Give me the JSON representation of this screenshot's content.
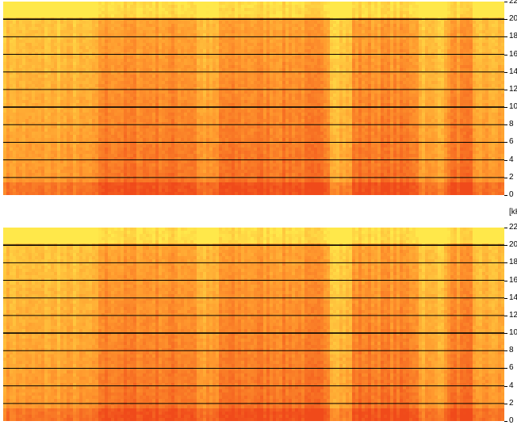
{
  "spectrogram": {
    "panels": [
      {
        "name": "top",
        "gridlines_khz": [
          2,
          4,
          6,
          8,
          10,
          12,
          14,
          16,
          18,
          20
        ]
      },
      {
        "name": "bottom",
        "gridlines_khz": [
          2,
          4,
          6,
          8,
          10,
          12,
          14,
          16,
          18,
          20
        ]
      }
    ],
    "axis": {
      "min": 0,
      "max": 22,
      "ticks": [
        "0",
        "2",
        "4",
        "6",
        "8",
        "10",
        "12",
        "14",
        "16",
        "18",
        "20",
        "22"
      ],
      "unit_label": "[kH"
    },
    "colors": {
      "low_energy": "#ffe84a",
      "mid_energy": "#ff9a2e",
      "high_energy": "#f04a1a",
      "gridline": "#000000"
    }
  }
}
